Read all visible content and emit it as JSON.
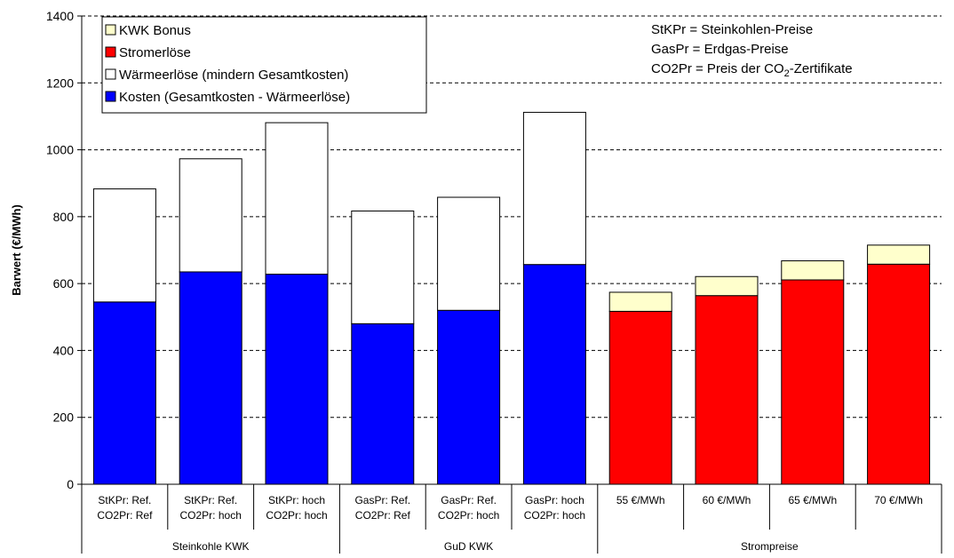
{
  "chart_data": {
    "type": "bar",
    "stacked": true,
    "ylabel": "Barwert (€/MWh)",
    "ylim": [
      0,
      1400
    ],
    "yticks": [
      0,
      200,
      400,
      600,
      800,
      1000,
      1200,
      1400
    ],
    "grid": "horizontal dashed",
    "categories": [
      [
        "StKPr: Ref.",
        "CO2Pr: Ref"
      ],
      [
        "StKPr: Ref.",
        "CO2Pr: hoch"
      ],
      [
        "StKPr: hoch",
        "CO2Pr: hoch"
      ],
      [
        "GasPr: Ref.",
        "CO2Pr: Ref"
      ],
      [
        "GasPr: Ref.",
        "CO2Pr: hoch"
      ],
      [
        "GasPr: hoch",
        "CO2Pr: hoch"
      ],
      [
        "55 €/MWh"
      ],
      [
        "60 €/MWh"
      ],
      [
        "65 €/MWh"
      ],
      [
        "70 €/MWh"
      ]
    ],
    "groups": [
      {
        "label": "Steinkohle KWK",
        "start": 0,
        "count": 3
      },
      {
        "label": "GuD KWK",
        "start": 3,
        "count": 3
      },
      {
        "label": "Strompreise",
        "start": 6,
        "count": 4
      }
    ],
    "series": [
      {
        "name": "Kosten (Gesamtkosten - Wärmeerlöse)",
        "color": "#0000ff",
        "values": [
          545,
          635,
          628,
          480,
          520,
          657,
          0,
          0,
          0,
          0
        ]
      },
      {
        "name": "Wärmeerlöse (mindern Gesamtkosten)",
        "color": "#ffffff",
        "values": [
          338,
          338,
          453,
          337,
          338,
          455,
          0,
          0,
          0,
          0
        ]
      },
      {
        "name": "Stromerlöse",
        "color": "#ff0000",
        "values": [
          0,
          0,
          0,
          0,
          0,
          0,
          517,
          564,
          611,
          658
        ]
      },
      {
        "name": "KWK Bonus",
        "color": "#ffffcc",
        "values": [
          0,
          0,
          0,
          0,
          0,
          0,
          57,
          57,
          57,
          57
        ]
      }
    ],
    "legend": {
      "placement": "top-left",
      "entries": [
        {
          "label": "KWK Bonus",
          "color": "#ffffcc"
        },
        {
          "label": "Stromerlöse",
          "color": "#ff0000"
        },
        {
          "label": "Wärmeerlöse (mindern Gesamtkosten)",
          "color": "#ffffff"
        },
        {
          "label": "Kosten (Gesamtkosten - Wärmeerlöse)",
          "color": "#0000ff"
        }
      ]
    },
    "notes": [
      {
        "text": "StKPr  = Steinkohlen-Preise"
      },
      {
        "text": "GasPr = Erdgas-Preise"
      },
      {
        "text": "CO2Pr = Preis der CO",
        "sub": "2",
        "suffix": "-Zertifikate"
      }
    ]
  }
}
